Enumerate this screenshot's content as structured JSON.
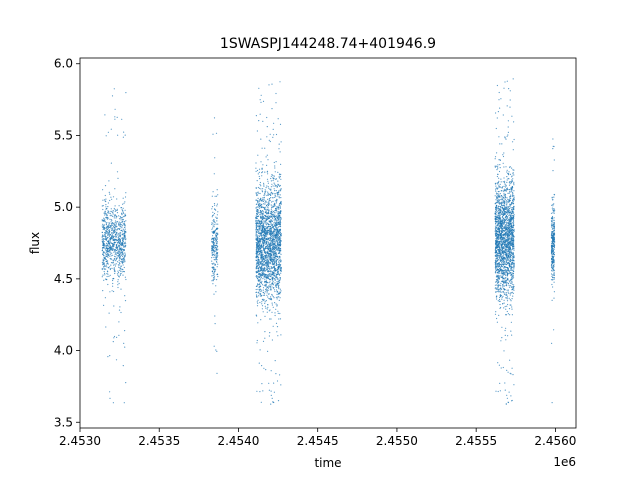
{
  "chart_data": {
    "type": "scatter",
    "title": "1SWASPJ144248.74+401946.9",
    "xlabel": "time",
    "ylabel": "flux",
    "x_offset_label": "1e6",
    "xlim": [
      2453000,
      2456130
    ],
    "ylim": [
      3.46,
      6.04
    ],
    "x_ticks": [
      2453000,
      2453500,
      2454000,
      2454500,
      2455000,
      2455500,
      2456000
    ],
    "x_tick_labels": [
      "2.4530",
      "2.4535",
      "2.4540",
      "2.4545",
      "2.4550",
      "2.4555",
      "2.4560"
    ],
    "y_ticks": [
      3.5,
      4.0,
      4.5,
      5.0,
      5.5,
      6.0
    ],
    "y_tick_labels": [
      "3.5",
      "4.0",
      "4.5",
      "5.0",
      "5.5",
      "6.0"
    ],
    "grid": false,
    "marker_color": "#1f77b4",
    "observing_seasons": [
      {
        "x_start": 2453140,
        "x_end": 2453290,
        "flux_center": 4.75,
        "flux_spread": 0.13,
        "flux_min": 3.63,
        "flux_max": 5.83,
        "points": 900
      },
      {
        "x_start": 2453830,
        "x_end": 2453870,
        "flux_center": 4.75,
        "flux_spread": 0.13,
        "flux_min": 3.8,
        "flux_max": 5.68,
        "points": 250
      },
      {
        "x_start": 2454110,
        "x_end": 2454270,
        "flux_center": 4.75,
        "flux_spread": 0.2,
        "flux_min": 3.6,
        "flux_max": 5.88,
        "points": 2200
      },
      {
        "x_start": 2455620,
        "x_end": 2455740,
        "flux_center": 4.78,
        "flux_spread": 0.2,
        "flux_min": 3.6,
        "flux_max": 5.9,
        "points": 2000
      },
      {
        "x_start": 2455975,
        "x_end": 2455995,
        "flux_center": 4.73,
        "flux_spread": 0.13,
        "flux_min": 3.6,
        "flux_max": 5.78,
        "points": 300
      }
    ]
  }
}
